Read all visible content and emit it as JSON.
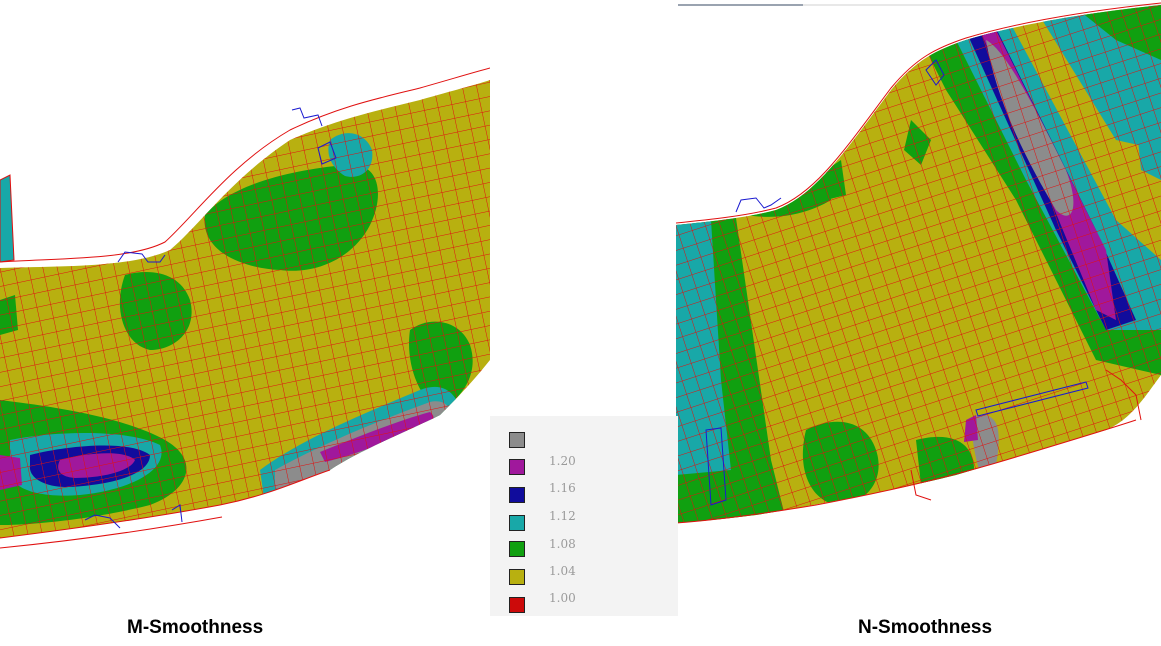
{
  "panels": [
    {
      "caption": "M-Smoothness"
    },
    {
      "caption": "N-Smoothness"
    }
  ],
  "legend": {
    "entries": [
      {
        "label": "",
        "color": "#8c8c8c"
      },
      {
        "label": "1.20",
        "color": "#a0189c"
      },
      {
        "label": "1.16",
        "color": "#100c9c"
      },
      {
        "label": "1.12",
        "color": "#18a8a8"
      },
      {
        "label": "1.08",
        "color": "#10a010"
      },
      {
        "label": "1.04",
        "color": "#b8b010"
      },
      {
        "label": "1.00",
        "color": "#cc0a0a"
      }
    ]
  },
  "colors": {
    "grid_line": "#e01010",
    "boundary": "#1a1ad0",
    "background": "#ffffff"
  }
}
